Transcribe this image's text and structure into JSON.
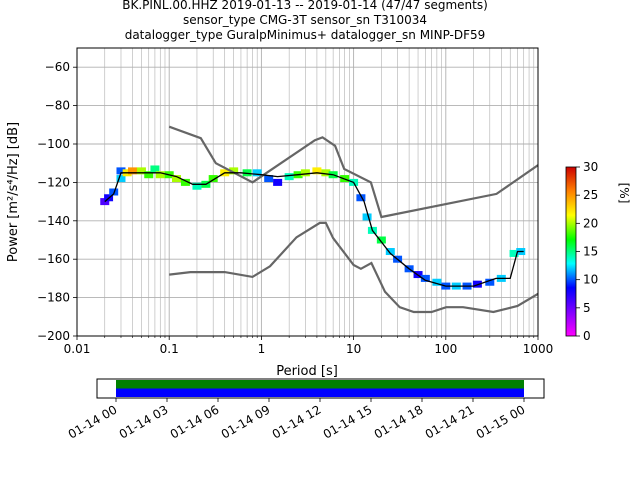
{
  "figure": {
    "title_lines": [
      "BK.PINL.00.HHZ   2019-01-13 -- 2019-01-14  (47/47 segments)",
      "sensor_type CMG-3T sensor_sn T310034",
      "datalogger_type GuralpMinimus+ datalogger_sn MINP-DF59"
    ]
  },
  "chart_data": [
    {
      "type": "heatmap",
      "chart_kind": "probabilistic power spectral density",
      "x_scale": "log",
      "xlim": [
        0.01,
        1000
      ],
      "ylim": [
        -200,
        -50
      ],
      "xlabel": "Period [s]",
      "ylabel": "Power [m²/s⁴/Hz] [dB]",
      "x_ticks": [
        {
          "value": 0.01,
          "label": "0.01"
        },
        {
          "value": 0.1,
          "label": "0.1"
        },
        {
          "value": 1,
          "label": "1"
        },
        {
          "value": 10,
          "label": "10"
        },
        {
          "value": 100,
          "label": "100"
        },
        {
          "value": 1000,
          "label": "1000"
        }
      ],
      "y_ticks": [
        -60,
        -80,
        -100,
        -120,
        -140,
        -160,
        -180,
        -200
      ],
      "grid": true,
      "colorbar": {
        "label": "[%]",
        "range": [
          0,
          30
        ],
        "ticks": [
          0,
          5,
          10,
          15,
          20,
          25,
          30
        ],
        "colormap": [
          "#ff00ff",
          "#8000ff",
          "#0000ff",
          "#00ffff",
          "#00ff00",
          "#ffff00",
          "#ff8000",
          "#cc0000"
        ]
      },
      "mean_curve": {
        "color": "#000000",
        "points": [
          [
            0.02,
            -130
          ],
          [
            0.025,
            -126
          ],
          [
            0.03,
            -115
          ],
          [
            0.05,
            -115
          ],
          [
            0.08,
            -115
          ],
          [
            0.12,
            -117
          ],
          [
            0.18,
            -121
          ],
          [
            0.25,
            -121
          ],
          [
            0.4,
            -115
          ],
          [
            0.6,
            -115
          ],
          [
            1,
            -116
          ],
          [
            1.5,
            -117
          ],
          [
            2.5,
            -116
          ],
          [
            4,
            -115
          ],
          [
            6,
            -116
          ],
          [
            10,
            -120
          ],
          [
            13,
            -130
          ],
          [
            16,
            -145
          ],
          [
            25,
            -157
          ],
          [
            40,
            -165
          ],
          [
            60,
            -171
          ],
          [
            100,
            -174
          ],
          [
            200,
            -174
          ],
          [
            350,
            -170
          ],
          [
            500,
            -170
          ],
          [
            600,
            -156
          ],
          [
            700,
            -156
          ]
        ]
      },
      "density_cells": [
        [
          0.02,
          -130,
          6
        ],
        [
          0.022,
          -128,
          8
        ],
        [
          0.025,
          -125,
          10
        ],
        [
          0.03,
          -118,
          12
        ],
        [
          0.03,
          -114,
          10
        ],
        [
          0.035,
          -115,
          22
        ],
        [
          0.04,
          -114,
          25
        ],
        [
          0.05,
          -114,
          20
        ],
        [
          0.06,
          -116,
          18
        ],
        [
          0.07,
          -113,
          15
        ],
        [
          0.08,
          -116,
          20
        ],
        [
          0.1,
          -116,
          18
        ],
        [
          0.12,
          -118,
          20
        ],
        [
          0.15,
          -120,
          18
        ],
        [
          0.2,
          -122,
          14
        ],
        [
          0.25,
          -121,
          16
        ],
        [
          0.3,
          -118,
          18
        ],
        [
          0.4,
          -115,
          22
        ],
        [
          0.5,
          -114,
          20
        ],
        [
          0.7,
          -115,
          16
        ],
        [
          0.9,
          -115,
          12
        ],
        [
          1.2,
          -118,
          10
        ],
        [
          1.5,
          -120,
          8
        ],
        [
          2,
          -117,
          14
        ],
        [
          2.5,
          -116,
          18
        ],
        [
          3,
          -115,
          20
        ],
        [
          4,
          -114,
          22
        ],
        [
          5,
          -115,
          20
        ],
        [
          6,
          -116,
          16
        ],
        [
          8,
          -118,
          18
        ],
        [
          10,
          -120,
          14
        ],
        [
          12,
          -128,
          10
        ],
        [
          14,
          -138,
          12
        ],
        [
          16,
          -145,
          14
        ],
        [
          20,
          -150,
          16
        ],
        [
          25,
          -156,
          12
        ],
        [
          30,
          -160,
          10
        ],
        [
          40,
          -165,
          10
        ],
        [
          50,
          -168,
          8
        ],
        [
          60,
          -170,
          10
        ],
        [
          80,
          -172,
          12
        ],
        [
          100,
          -174,
          10
        ],
        [
          130,
          -174,
          12
        ],
        [
          170,
          -174,
          10
        ],
        [
          220,
          -173,
          8
        ],
        [
          300,
          -172,
          10
        ],
        [
          400,
          -170,
          12
        ],
        [
          550,
          -157,
          14
        ],
        [
          650,
          -156,
          12
        ]
      ],
      "noise_models": [
        {
          "name": "NHNM",
          "color": "#666666",
          "points": [
            [
              0.1,
              -91
            ],
            [
              0.22,
              -97
            ],
            [
              0.32,
              -110
            ],
            [
              0.8,
              -120
            ],
            [
              3.8,
              -98
            ],
            [
              4.6,
              -96.5
            ],
            [
              6.3,
              -101
            ],
            [
              7.9,
              -113
            ],
            [
              15.4,
              -120
            ],
            [
              20,
              -138
            ],
            [
              354.8,
              -126
            ],
            [
              1000,
              -111
            ]
          ]
        },
        {
          "name": "NLNM",
          "color": "#666666",
          "points": [
            [
              0.1,
              -168
            ],
            [
              0.17,
              -166.7
            ],
            [
              0.4,
              -166.7
            ],
            [
              0.8,
              -169.2
            ],
            [
              1.24,
              -163.7
            ],
            [
              2.4,
              -148.6
            ],
            [
              4.3,
              -141.1
            ],
            [
              5,
              -141.1
            ],
            [
              6,
              -149
            ],
            [
              10,
              -163
            ],
            [
              12,
              -165
            ],
            [
              15.6,
              -162
            ],
            [
              21.9,
              -177
            ],
            [
              31.6,
              -185
            ],
            [
              45,
              -187.5
            ],
            [
              70,
              -187.5
            ],
            [
              101,
              -185
            ],
            [
              154,
              -185
            ],
            [
              328,
              -187.5
            ],
            [
              600,
              -184.4
            ],
            [
              1000,
              -178
            ]
          ]
        }
      ]
    },
    {
      "type": "timeline",
      "description_free": true,
      "tick_labels": [
        "01-14 00",
        "01-14 03",
        "01-14 06",
        "01-14 09",
        "01-14 12",
        "01-14 15",
        "01-14 18",
        "01-14 21",
        "01-15 00"
      ],
      "coverage": [
        {
          "start": "01-14 00",
          "end": "01-15 00",
          "color": "#008000"
        },
        {
          "start": "01-14 00",
          "end": "01-15 00",
          "color": "#0000ff"
        }
      ]
    }
  ]
}
